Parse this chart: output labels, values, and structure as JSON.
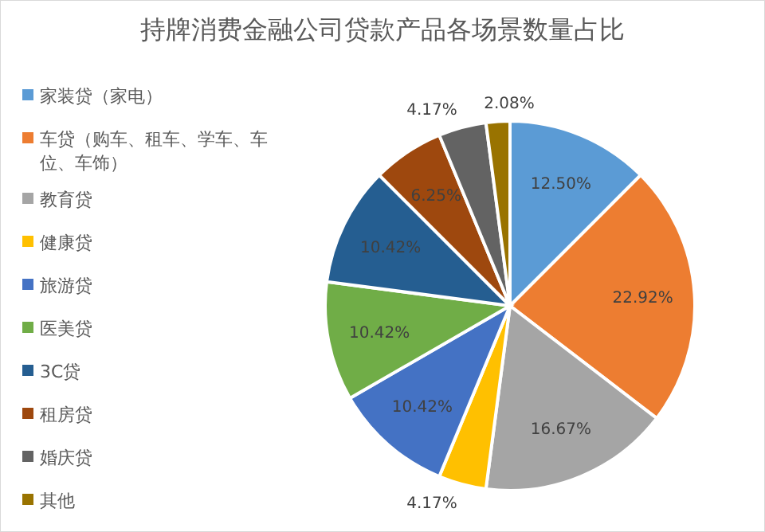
{
  "chart_data": {
    "type": "pie",
    "title": "持牌消费金融公司贷款产品各场景数量占比",
    "categories": [
      "家装贷（家电）",
      "车贷（购车、租车、学车、车位、车饰）",
      "教育贷",
      "健康贷",
      "旅游贷",
      "医美贷",
      "3C贷",
      "租房贷",
      "婚庆贷",
      "其他"
    ],
    "values": [
      12.5,
      22.92,
      16.67,
      4.17,
      10.42,
      10.42,
      10.42,
      6.25,
      4.17,
      2.08
    ],
    "value_labels": [
      "12.50%",
      "22.92%",
      "16.67%",
      "4.17%",
      "10.42%",
      "10.42%",
      "10.42%",
      "6.25%",
      "4.17%",
      "2.08%"
    ],
    "colors": [
      "#5b9bd5",
      "#ed7d31",
      "#a5a5a5",
      "#ffc000",
      "#4472c4",
      "#70ad47",
      "#255e91",
      "#9e480e",
      "#636363",
      "#997300"
    ],
    "legend": "left"
  }
}
